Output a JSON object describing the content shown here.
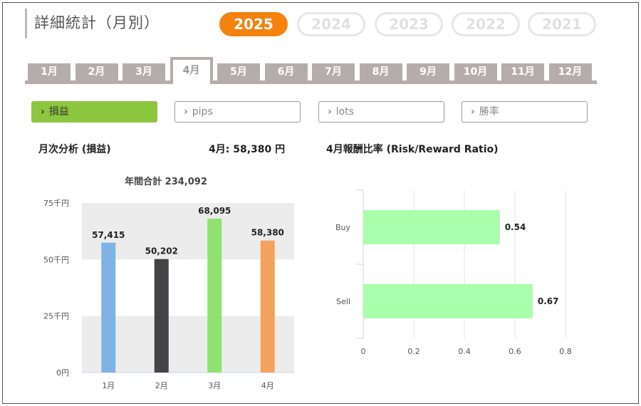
{
  "page": {
    "title": "詳細統計（月別）"
  },
  "years": [
    {
      "label": "2025",
      "active": true
    },
    {
      "label": "2024",
      "active": false
    },
    {
      "label": "2023",
      "active": false
    },
    {
      "label": "2022",
      "active": false
    },
    {
      "label": "2021",
      "active": false
    }
  ],
  "months": [
    {
      "label": "1月",
      "active": false
    },
    {
      "label": "2月",
      "active": false
    },
    {
      "label": "3月",
      "active": false
    },
    {
      "label": "4月",
      "active": true
    },
    {
      "label": "5月",
      "active": false
    },
    {
      "label": "6月",
      "active": false
    },
    {
      "label": "7月",
      "active": false
    },
    {
      "label": "8月",
      "active": false
    },
    {
      "label": "9月",
      "active": false
    },
    {
      "label": "10月",
      "active": false
    },
    {
      "label": "11月",
      "active": false
    },
    {
      "label": "12月",
      "active": false
    }
  ],
  "filters": [
    {
      "label": "損益",
      "active": true
    },
    {
      "label": "pips",
      "active": false
    },
    {
      "label": "lots",
      "active": false
    },
    {
      "label": "勝率",
      "active": false
    }
  ],
  "summary": {
    "left_label": "月次分析 (損益)",
    "month_value": "4月:  58,380 円",
    "right_label": "4月報酬比率 (Risk/Reward Ratio)"
  },
  "chart_data": [
    {
      "type": "bar",
      "title": "年間合計 234,092",
      "categories": [
        "1月",
        "2月",
        "3月",
        "4月"
      ],
      "values": [
        57415,
        50202,
        68095,
        58380
      ],
      "value_labels": [
        "57,415",
        "50,202",
        "68,095",
        "58,380"
      ],
      "colors": [
        "#7eb3e6",
        "#434348",
        "#8fe26f",
        "#f5a25d"
      ],
      "yticks": [
        {
          "value": 0,
          "label": "0円"
        },
        {
          "value": 25000,
          "label": "25千円"
        },
        {
          "value": 50000,
          "label": "50千円"
        },
        {
          "value": 75000,
          "label": "75千円"
        }
      ],
      "ylim": [
        0,
        75000
      ],
      "grid_bands": true
    },
    {
      "type": "bar",
      "orientation": "horizontal",
      "categories": [
        "Buy",
        "Sell"
      ],
      "values": [
        0.54,
        0.67
      ],
      "value_labels": [
        "0.54",
        "0.67"
      ],
      "color": "#aaffaa",
      "xticks": [
        "0",
        "0.2",
        "0.4",
        "0.6",
        "0.8"
      ],
      "xlim": [
        0,
        0.8
      ],
      "grid": true
    }
  ]
}
